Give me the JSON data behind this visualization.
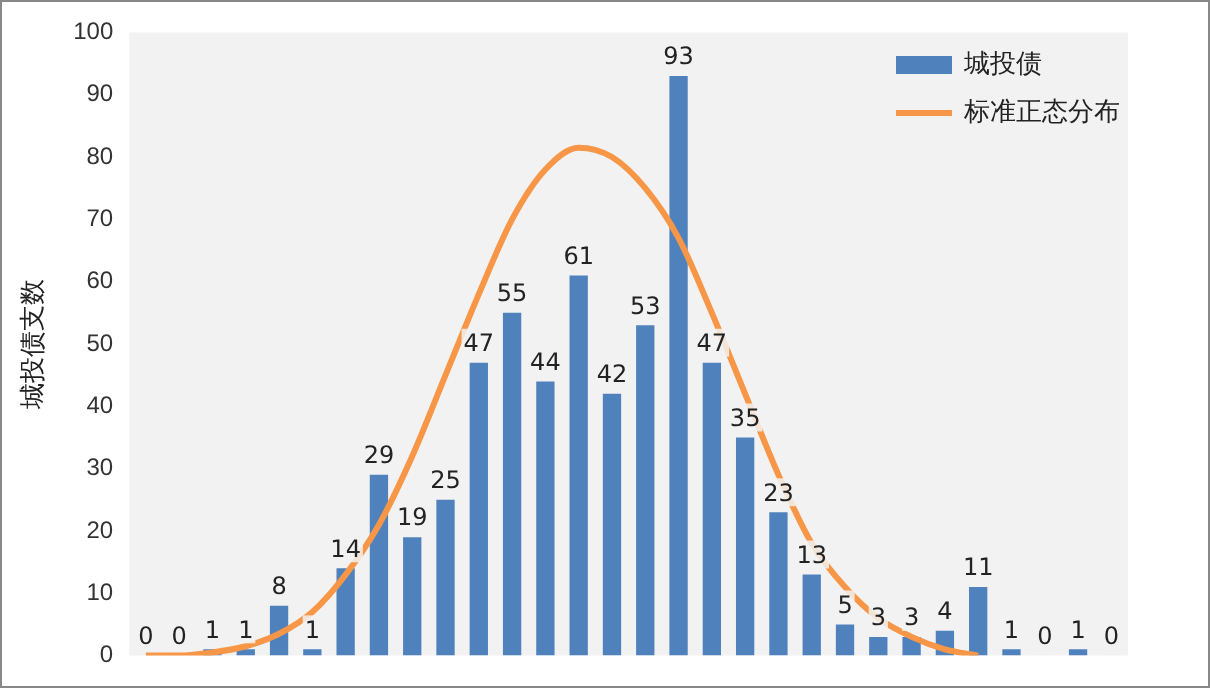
{
  "chart_data": {
    "type": "bar",
    "ylabel": "城投债支数",
    "categories": [
      null,
      null,
      null,
      null,
      null,
      null,
      null,
      null,
      null,
      null,
      null,
      null,
      null,
      null,
      null,
      null,
      null,
      null,
      null,
      null,
      null,
      null,
      null,
      null,
      null,
      null,
      null,
      null,
      null,
      null
    ],
    "series": [
      {
        "name": "城投债",
        "color": "#4f81bd",
        "values": [
          0,
          0,
          1,
          1,
          8,
          1,
          14,
          29,
          19,
          25,
          47,
          55,
          44,
          61,
          42,
          53,
          93,
          47,
          35,
          23,
          13,
          5,
          3,
          3,
          4,
          11,
          1,
          0,
          1,
          0
        ],
        "value_labels": [
          "0",
          "0",
          "1",
          "1",
          "8",
          "1",
          "14",
          "29",
          "19",
          "25",
          "47",
          "55",
          "44",
          "61",
          "42",
          "53",
          "93",
          "47",
          "35",
          "23",
          "13",
          "5",
          "3",
          "3",
          "4",
          "11",
          "1",
          "0",
          "1",
          "0"
        ]
      },
      {
        "name": "标准正态分布",
        "type": "line",
        "color": "#f79646",
        "values": [
          0,
          0,
          0.5,
          1.5,
          3.5,
          7,
          13,
          21,
          32,
          45,
          58,
          70,
          78,
          81.5,
          80,
          75,
          67,
          55,
          42,
          29,
          18,
          11,
          6,
          3,
          1,
          0,
          null,
          null,
          null,
          null
        ]
      }
    ],
    "ylim": [
      0,
      100
    ],
    "yticks": [
      0,
      10,
      20,
      30,
      40,
      50,
      60,
      70,
      80,
      90,
      100
    ],
    "grid": false,
    "legend": "top right",
    "marker": "none"
  }
}
